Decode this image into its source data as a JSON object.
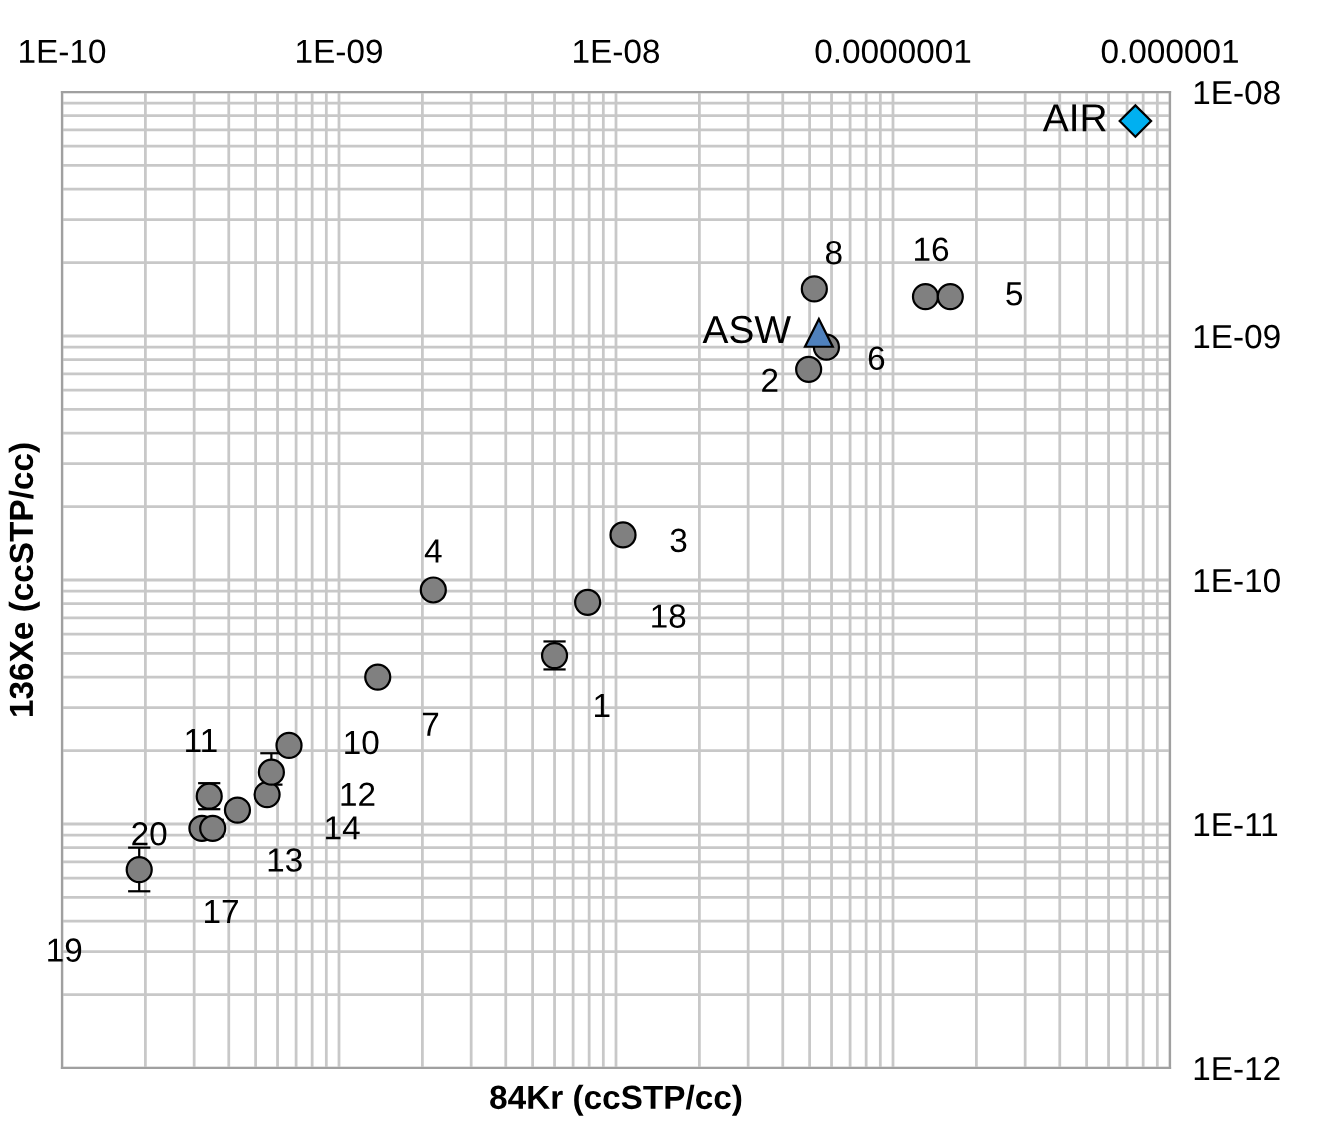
{
  "chart_data": {
    "type": "scatter",
    "xlabel": "84Kr (ccSTP/cc)",
    "ylabel": "136Xe (ccSTP/cc)",
    "log": "xy",
    "grid": true,
    "xlim": [
      1e-10,
      1e-06
    ],
    "ylim": [
      1e-12,
      1e-08
    ],
    "xticks": [
      {
        "value": 1e-10,
        "label": "1E-10"
      },
      {
        "value": 1e-09,
        "label": "1E-09"
      },
      {
        "value": 1e-08,
        "label": "1E-08"
      },
      {
        "value": 1e-07,
        "label": "0.0000001"
      },
      {
        "value": 1e-06,
        "label": "0.000001"
      }
    ],
    "yticks": [
      {
        "value": 1e-12,
        "label": "1E-12"
      },
      {
        "value": 1e-11,
        "label": "1E-11"
      },
      {
        "value": 1e-10,
        "label": "1E-10"
      },
      {
        "value": 1e-09,
        "label": "1E-09"
      },
      {
        "value": 1e-08,
        "label": "1E-08"
      }
    ],
    "series": [
      {
        "color": "#808080",
        "marker": "circle",
        "x": [
          6e-09,
          4.96e-08,
          1.06e-08,
          2.19e-09,
          1.61e-07,
          5.75e-08,
          1.38e-09,
          5.2e-08,
          6.6e-10,
          3.4e-10,
          5.7e-10,
          4.3e-10,
          5.5e-10,
          1.31e-07,
          3.5e-10,
          7.9e-09,
          1.9e-10,
          3.2e-10
        ],
        "values": [
          4.9e-11,
          7.3e-10,
          1.53e-10,
          9.1e-11,
          1.45e-09,
          9e-10,
          4e-11,
          1.56e-09,
          2.1e-11,
          1.3e-11,
          1.63e-11,
          1.14e-11,
          1.32e-11,
          1.45e-09,
          9.6e-12,
          8.1e-11,
          6.5e-12,
          9.6e-12
        ],
        "errors": [
          [
            4.3e-11,
            5.6e-11
          ],
          null,
          null,
          null,
          null,
          null,
          null,
          null,
          null,
          [
            1.15e-11,
            1.47e-11
          ],
          [
            1.45e-11,
            1.95e-11
          ],
          null,
          null,
          null,
          [
            8.9e-12,
            1.04e-11
          ],
          null,
          [
            5.3e-12,
            8e-12
          ],
          null
        ]
      },
      {
        "name": "ASW",
        "color": "#4f81bd",
        "marker": "triangle",
        "x": [
          5.4e-08
        ],
        "values": [
          1.03e-09
        ]
      },
      {
        "name": "AIR",
        "color": "#00b0f0",
        "marker": "diamond",
        "x": [
          7.5e-07
        ],
        "values": [
          7.6e-09
        ]
      }
    ],
    "annotations": [
      {
        "text": "1",
        "x": 6e-09,
        "y": 4.9e-11
      },
      {
        "text": "2",
        "x": 4.96e-08,
        "y": 7.3e-10
      },
      {
        "text": "3",
        "x": 1.06e-08,
        "y": 1.53e-10
      },
      {
        "text": "4",
        "x": 2.19e-09,
        "y": 9.1e-11
      },
      {
        "text": "5",
        "x": 1.61e-07,
        "y": 1.45e-09
      },
      {
        "text": "6",
        "x": 5.75e-08,
        "y": 9e-10
      },
      {
        "text": "7",
        "x": 1.38e-09,
        "y": 4e-11
      },
      {
        "text": "8",
        "x": 5.2e-08,
        "y": 1.56e-09
      },
      {
        "text": "10",
        "x": 6.6e-10,
        "y": 2.1e-11
      },
      {
        "text": "11",
        "x": 3.4e-10,
        "y": 1.3e-11
      },
      {
        "text": "12",
        "x": 5.7e-10,
        "y": 1.63e-11
      },
      {
        "text": "13",
        "x": 4.3e-10,
        "y": 1.14e-11
      },
      {
        "text": "14",
        "x": 5.5e-10,
        "y": 1.32e-11
      },
      {
        "text": "16",
        "x": 1.31e-07,
        "y": 1.45e-09
      },
      {
        "text": "17",
        "x": 3.5e-10,
        "y": 9.6e-12
      },
      {
        "text": "18",
        "x": 7.9e-09,
        "y": 8.1e-11
      },
      {
        "text": "19",
        "x": 1.9e-10,
        "y": 6.5e-12
      },
      {
        "text": "20",
        "x": 3.2e-10,
        "y": 9.6e-12
      }
    ]
  }
}
